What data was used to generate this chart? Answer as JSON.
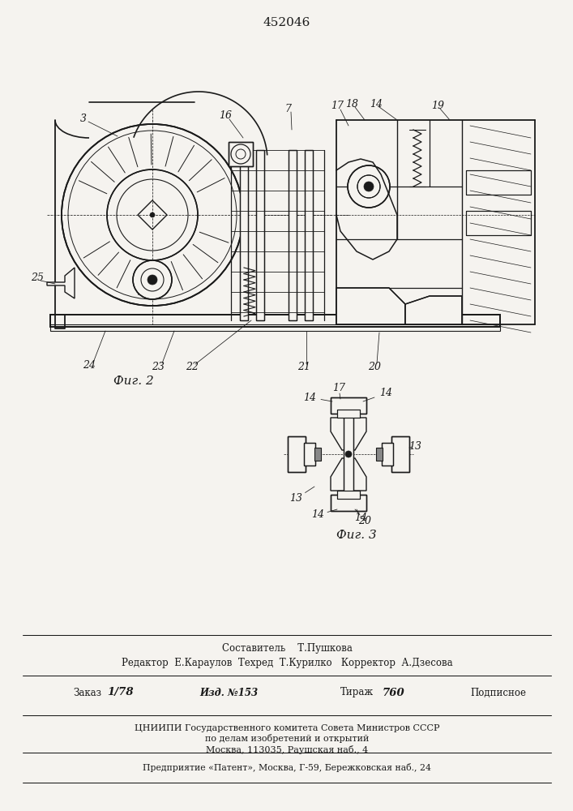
{
  "patent_number": "452046",
  "bg_color": "#f5f3ef",
  "line_color": "#1a1a1a",
  "fig2_label": "Фиг. 2",
  "fig3_label": "Фиг. 3",
  "footer_sestavitel": "Составитель    Т.Пушкова",
  "footer_redaktor": "Редактор  Е.Караулов  Техред  Т.Курилко   Корректор  А.Дзесова",
  "footer_cnipi1": "ЦНИИПИ Государственного комитета Совета Министров СССР",
  "footer_cnipi2": "по делам изобретений и открытий",
  "footer_cnipi3": "Москва, 113035, Раушская наб., 4",
  "footer_predpr": "Предприятие «Патент», Москва, Г-59, Бережковская наб., 24"
}
